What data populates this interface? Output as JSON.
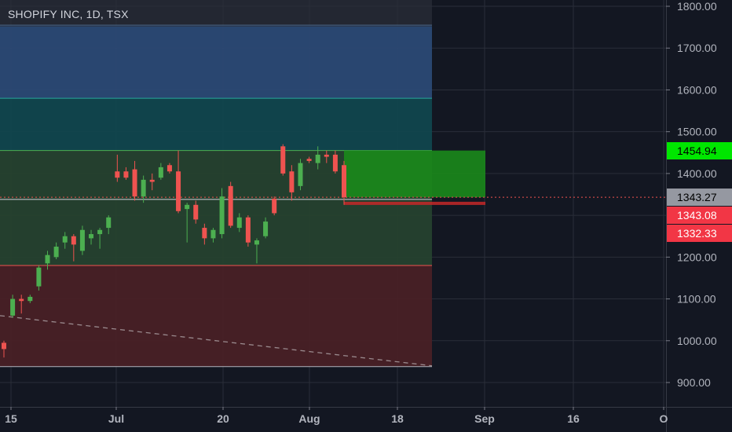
{
  "header": {
    "title": "SHOPIFY INC, 1D, TSX"
  },
  "colors": {
    "background": "#131722",
    "grid": "#2a2e39",
    "up": "#26a69a",
    "up_bar": "#4caf50",
    "down": "#ef5350",
    "axis_text": "#b2b5be",
    "zone_blue": "#2b4a78",
    "zone_teal": "#10474f",
    "zone_green": "#26432f",
    "zone_red": "#4a1f25",
    "target_green": "#1b8a1b"
  },
  "chart_data": {
    "type": "candlestick",
    "symbol": "SHOPIFY INC",
    "interval": "1D",
    "exchange": "TSX",
    "x_ticks": [
      "15",
      "Jul",
      "20",
      "Aug",
      "18",
      "Sep",
      "16",
      "O"
    ],
    "y_ticks": [
      "1800.00",
      "1700.00",
      "1600.00",
      "1500.00",
      "1400.00",
      "1200.00",
      "1100.00",
      "1000.00",
      "900.00"
    ],
    "ylim": [
      860,
      1820
    ],
    "price_labels": [
      {
        "value": 1454.94,
        "text": "1454.94",
        "color": "#00e600",
        "text_color": "#000000"
      },
      {
        "value": 1343.27,
        "text": "1343.27",
        "color": "#9598a1",
        "text_color": "#000000"
      },
      {
        "value": 1343.08,
        "text": "1343.08",
        "color": "#f23645",
        "text_color": "#ffffff"
      },
      {
        "value": 1332.33,
        "text": "1332.33",
        "color": "#f23645",
        "text_color": "#ffffff"
      }
    ],
    "last_price": 1343.27,
    "zones": [
      {
        "from": 1580,
        "to": 1755,
        "color": "#2b4a78",
        "line": "#6a9fd8"
      },
      {
        "from": 1455,
        "to": 1580,
        "color": "#10474f",
        "line": "#26a69a"
      },
      {
        "from": 1180,
        "to": 1455,
        "color": "#26432f",
        "line": "#4caf50"
      },
      {
        "from": 938,
        "to": 1180,
        "color": "#4a1f25",
        "line": "#ef5350"
      }
    ],
    "mid_line": 1338,
    "target_box": {
      "from": 1343.08,
      "to": 1454.94
    },
    "stop_box": {
      "from": 1332.33,
      "to": 1343.08
    },
    "trendline": {
      "from_value": 1060,
      "to_value": 940
    },
    "candles": [
      {
        "o": 980,
        "h": 1000,
        "l": 960,
        "c": 995,
        "dir": "down"
      },
      {
        "o": 1060,
        "h": 1110,
        "l": 1055,
        "c": 1100,
        "dir": "up"
      },
      {
        "o": 1095,
        "h": 1110,
        "l": 1065,
        "c": 1100,
        "dir": "down"
      },
      {
        "o": 1095,
        "h": 1110,
        "l": 1090,
        "c": 1105,
        "dir": "up"
      },
      {
        "o": 1130,
        "h": 1180,
        "l": 1120,
        "c": 1175,
        "dir": "up"
      },
      {
        "o": 1185,
        "h": 1215,
        "l": 1170,
        "c": 1205,
        "dir": "up"
      },
      {
        "o": 1200,
        "h": 1235,
        "l": 1195,
        "c": 1225,
        "dir": "up"
      },
      {
        "o": 1235,
        "h": 1260,
        "l": 1220,
        "c": 1250,
        "dir": "up"
      },
      {
        "o": 1250,
        "h": 1255,
        "l": 1190,
        "c": 1230,
        "dir": "down"
      },
      {
        "o": 1215,
        "h": 1275,
        "l": 1205,
        "c": 1265,
        "dir": "up"
      },
      {
        "o": 1245,
        "h": 1265,
        "l": 1230,
        "c": 1255,
        "dir": "up"
      },
      {
        "o": 1255,
        "h": 1270,
        "l": 1220,
        "c": 1265,
        "dir": "up"
      },
      {
        "o": 1270,
        "h": 1300,
        "l": 1255,
        "c": 1295,
        "dir": "up"
      },
      {
        "o": 1390,
        "h": 1445,
        "l": 1380,
        "c": 1405,
        "dir": "down"
      },
      {
        "o": 1405,
        "h": 1415,
        "l": 1385,
        "c": 1390,
        "dir": "down"
      },
      {
        "o": 1410,
        "h": 1430,
        "l": 1335,
        "c": 1345,
        "dir": "down"
      },
      {
        "o": 1345,
        "h": 1395,
        "l": 1330,
        "c": 1385,
        "dir": "up"
      },
      {
        "o": 1385,
        "h": 1400,
        "l": 1360,
        "c": 1380,
        "dir": "down"
      },
      {
        "o": 1390,
        "h": 1425,
        "l": 1385,
        "c": 1415,
        "dir": "up"
      },
      {
        "o": 1420,
        "h": 1425,
        "l": 1400,
        "c": 1405,
        "dir": "down"
      },
      {
        "o": 1405,
        "h": 1455,
        "l": 1305,
        "c": 1310,
        "dir": "down"
      },
      {
        "o": 1315,
        "h": 1330,
        "l": 1235,
        "c": 1325,
        "dir": "up"
      },
      {
        "o": 1325,
        "h": 1335,
        "l": 1280,
        "c": 1290,
        "dir": "down"
      },
      {
        "o": 1270,
        "h": 1280,
        "l": 1230,
        "c": 1245,
        "dir": "down"
      },
      {
        "o": 1245,
        "h": 1270,
        "l": 1235,
        "c": 1265,
        "dir": "up"
      },
      {
        "o": 1345,
        "h": 1365,
        "l": 1245,
        "c": 1255,
        "dir": "up"
      },
      {
        "o": 1370,
        "h": 1380,
        "l": 1270,
        "c": 1275,
        "dir": "down"
      },
      {
        "o": 1270,
        "h": 1305,
        "l": 1260,
        "c": 1295,
        "dir": "up"
      },
      {
        "o": 1295,
        "h": 1300,
        "l": 1225,
        "c": 1235,
        "dir": "down"
      },
      {
        "o": 1230,
        "h": 1245,
        "l": 1185,
        "c": 1240,
        "dir": "up"
      },
      {
        "o": 1250,
        "h": 1295,
        "l": 1245,
        "c": 1285,
        "dir": "up"
      },
      {
        "o": 1305,
        "h": 1345,
        "l": 1300,
        "c": 1340,
        "dir": "down"
      },
      {
        "o": 1465,
        "h": 1470,
        "l": 1395,
        "c": 1400,
        "dir": "down"
      },
      {
        "o": 1405,
        "h": 1420,
        "l": 1335,
        "c": 1355,
        "dir": "down"
      },
      {
        "o": 1370,
        "h": 1435,
        "l": 1360,
        "c": 1425,
        "dir": "up"
      },
      {
        "o": 1430,
        "h": 1440,
        "l": 1425,
        "c": 1435,
        "dir": "down"
      },
      {
        "o": 1425,
        "h": 1465,
        "l": 1410,
        "c": 1445,
        "dir": "up"
      },
      {
        "o": 1445,
        "h": 1455,
        "l": 1425,
        "c": 1440,
        "dir": "down"
      },
      {
        "o": 1445,
        "h": 1455,
        "l": 1400,
        "c": 1405,
        "dir": "down"
      },
      {
        "o": 1420,
        "h": 1430,
        "l": 1325,
        "c": 1343,
        "dir": "down"
      }
    ]
  }
}
